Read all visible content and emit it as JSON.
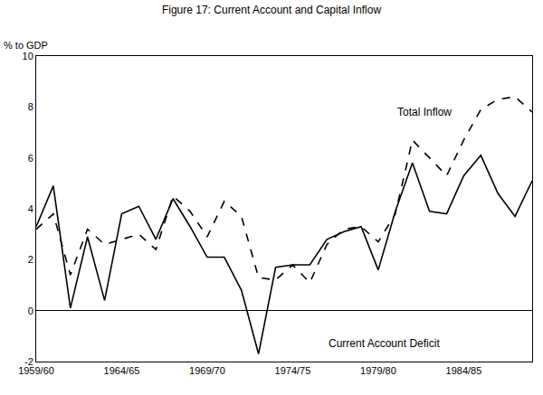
{
  "chart_data": {
    "type": "line",
    "title": "Figure 17: Current Account and Capital Inflow",
    "y_label": "% to GDP",
    "categories": [
      "1959/60",
      null,
      null,
      null,
      null,
      "1964/65",
      null,
      null,
      null,
      null,
      "1969/70",
      null,
      null,
      null,
      null,
      "1974/75",
      null,
      null,
      null,
      null,
      "1979/80",
      null,
      null,
      null,
      null,
      "1984/85",
      null,
      null,
      null,
      null
    ],
    "series": [
      {
        "name": "Total Inflow",
        "color": "#000000",
        "line_style": "dash",
        "values": [
          3.2,
          3.8,
          1.4,
          3.2,
          2.6,
          2.8,
          3.0,
          2.4,
          4.5,
          3.9,
          2.9,
          4.3,
          3.7,
          1.3,
          1.2,
          1.8,
          1.1,
          2.6,
          3.2,
          3.3,
          2.7,
          3.8,
          6.7,
          6.0,
          5.3,
          6.7,
          7.9,
          8.3,
          8.4,
          7.8
        ]
      },
      {
        "name": "Current Account Deficit",
        "color": "#000000",
        "line_style": "solid",
        "values": [
          3.3,
          4.9,
          0.1,
          2.9,
          0.4,
          3.8,
          4.1,
          2.8,
          4.4,
          3.3,
          2.1,
          2.1,
          0.8,
          -1.7,
          1.7,
          1.8,
          1.8,
          2.8,
          3.1,
          3.3,
          1.6,
          3.9,
          5.8,
          3.9,
          3.8,
          5.3,
          6.1,
          4.6,
          3.7,
          5.1
        ]
      }
    ],
    "annotations": [
      {
        "text": "Total Inflow",
        "x": 21,
        "y": 7.8
      },
      {
        "text": "Current Account Deficit",
        "x": 17,
        "y": -1.3
      }
    ],
    "ylim": [
      -2,
      10
    ],
    "yticks": [
      -2,
      0,
      2,
      4,
      6,
      8,
      10
    ],
    "grid": false,
    "legend": "none"
  }
}
